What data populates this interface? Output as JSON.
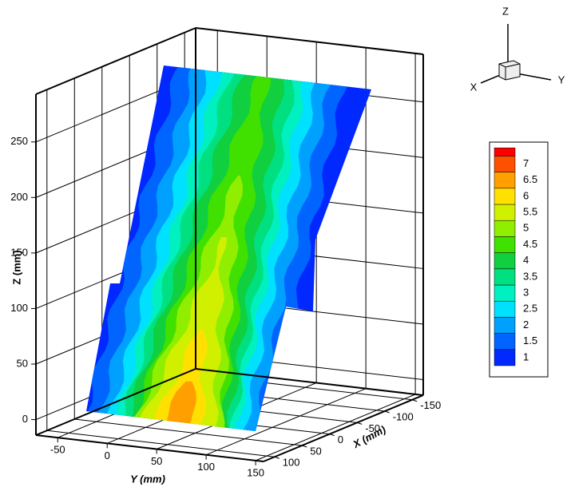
{
  "chart_data": {
    "type": "contour3d",
    "zlabel": "Z (mm)",
    "ylabel": "Y (mm)",
    "xlabel": "X (mm)",
    "zlim": [
      -14,
      293
    ],
    "zticks": [
      0,
      50,
      100,
      150,
      200,
      250
    ],
    "ylim": [
      -72,
      158
    ],
    "yticks": [
      -50,
      0,
      50,
      100,
      150
    ],
    "xlim": [
      120,
      -170
    ],
    "xticks": [
      100,
      50,
      0,
      -50,
      -100,
      -150
    ],
    "levels": [
      1,
      1.5,
      2,
      2.5,
      3,
      3.5,
      4,
      4.5,
      5,
      5.5,
      6,
      6.5,
      7
    ],
    "colors": [
      "#0028ff",
      "#0064ff",
      "#00a0ff",
      "#00e0ff",
      "#00f0c0",
      "#00e080",
      "#10d040",
      "#40e000",
      "#90ee00",
      "#d0f000",
      "#ffe000",
      "#ffa000",
      "#ff5000"
    ],
    "top_color": "#ff0000",
    "grid": true,
    "orientation_labels": {
      "x": "X",
      "y": "Y",
      "z": "Z"
    }
  }
}
